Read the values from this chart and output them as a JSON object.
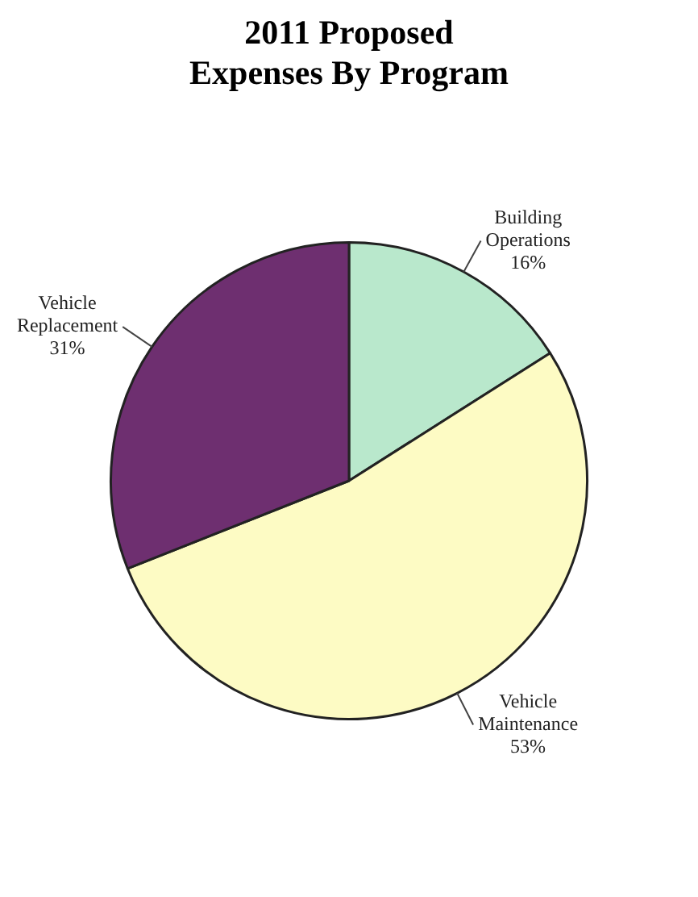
{
  "chart_data": {
    "type": "pie",
    "title": "2011 Proposed Expenses By Program",
    "categories": [
      "Building Operations",
      "Vehicle Maintenance",
      "Vehicle Replacement"
    ],
    "values": [
      16,
      53,
      31
    ],
    "value_labels": [
      "16%",
      "53%",
      "31%"
    ],
    "colors": [
      "#b9e8cc",
      "#fdfbc4",
      "#6e2f70"
    ],
    "legend": false
  }
}
